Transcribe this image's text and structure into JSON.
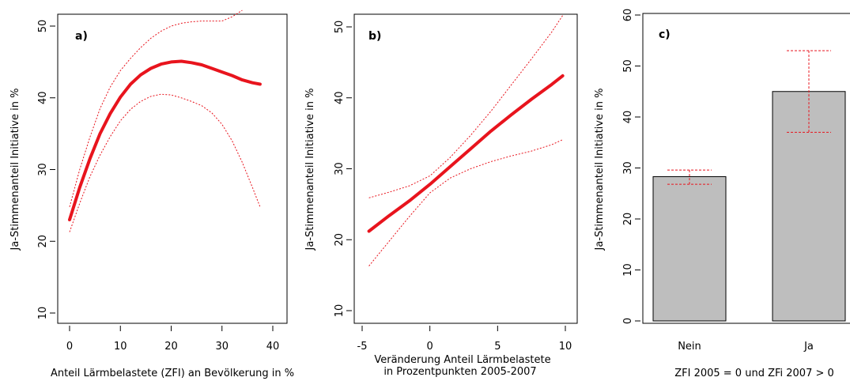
{
  "chart_data": [
    {
      "type": "line",
      "panel_label": "a)",
      "xlabel": "Anteil Lärmbelastete (ZFI) an Bevölkerung in %",
      "ylabel": "Ja-Stimmenanteil Initiative in %",
      "xlim": [
        0,
        40
      ],
      "ylim": [
        10,
        50
      ],
      "x_ticks": [
        0,
        10,
        20,
        30,
        40
      ],
      "y_ticks": [
        10,
        20,
        30,
        40,
        50
      ],
      "grid": false,
      "series": [
        {
          "role": "fit",
          "color": "#e8141d",
          "style": "solid",
          "x": [
            0,
            2,
            4,
            6,
            8,
            10,
            12,
            14,
            16,
            18,
            20,
            22,
            24,
            26,
            28,
            30,
            32,
            34,
            36,
            37.5
          ],
          "y": [
            23,
            27.5,
            31.5,
            35,
            37.8,
            40.1,
            41.9,
            43.2,
            44.1,
            44.7,
            45,
            45.1,
            44.9,
            44.6,
            44.1,
            43.6,
            43.1,
            42.5,
            42.1,
            41.9
          ]
        },
        {
          "role": "upper",
          "color": "#e8141d",
          "style": "dotted",
          "x": [
            0,
            2,
            4,
            6,
            8,
            10,
            12,
            14,
            16,
            18,
            20,
            22,
            24,
            26,
            28,
            30,
            32,
            34
          ],
          "y": [
            24.8,
            30,
            34.5,
            38.5,
            41.5,
            43.8,
            45.5,
            47,
            48.3,
            49.3,
            50,
            50.4,
            50.6,
            50.7,
            50.7,
            50.7,
            51.3,
            52.2
          ]
        },
        {
          "role": "lower",
          "color": "#e8141d",
          "style": "dotted",
          "x": [
            0,
            2,
            4,
            6,
            8,
            10,
            12,
            14,
            16,
            18,
            20,
            22,
            24,
            26,
            28,
            30,
            32,
            34,
            36,
            37.5
          ],
          "y": [
            21.3,
            25.3,
            29,
            32,
            34.6,
            36.8,
            38.4,
            39.5,
            40.2,
            40.5,
            40.4,
            40,
            39.5,
            38.9,
            37.9,
            36.3,
            34,
            31,
            27.5,
            24.8
          ]
        }
      ]
    },
    {
      "type": "line",
      "panel_label": "b)",
      "xlabel": "Veränderung Anteil Lärmbelastete",
      "xlabel_line2": "in Prozentpunkten 2005-2007",
      "ylabel": "Ja-Stimmenanteil Initiative in %",
      "xlim": [
        -5,
        10
      ],
      "ylim": [
        10,
        50
      ],
      "x_ticks": [
        -5,
        0,
        5,
        10
      ],
      "y_ticks": [
        10,
        20,
        30,
        40,
        50
      ],
      "grid": false,
      "series": [
        {
          "role": "fit",
          "color": "#e8141d",
          "style": "solid",
          "x": [
            -4.5,
            -3,
            -1.5,
            0,
            1.5,
            3,
            4.5,
            6,
            7.5,
            9,
            9.8
          ],
          "y": [
            21.2,
            23.4,
            25.5,
            27.8,
            30.3,
            32.8,
            35.3,
            37.6,
            39.8,
            41.9,
            43.1
          ]
        },
        {
          "role": "upper",
          "color": "#e8141d",
          "style": "dotted",
          "x": [
            -4.5,
            -3,
            -1.5,
            0,
            1.5,
            3,
            4.5,
            6,
            7.5,
            9,
            9.8
          ],
          "y": [
            25.9,
            26.7,
            27.6,
            29,
            31.6,
            34.7,
            38.1,
            41.8,
            45.5,
            49.3,
            51.6
          ]
        },
        {
          "role": "lower",
          "color": "#e8141d",
          "style": "dotted",
          "x": [
            -4.5,
            -3,
            -1.5,
            0,
            1.5,
            3,
            4.5,
            6,
            7.5,
            9,
            9.8
          ],
          "y": [
            16.3,
            19.8,
            23.3,
            26.6,
            28.7,
            30,
            31,
            31.8,
            32.5,
            33.4,
            34.1
          ]
        }
      ]
    },
    {
      "type": "bar",
      "panel_label": "c)",
      "xlabel": "ZFI 2005 = 0 und ZFi 2007 > 0",
      "ylabel": "Ja-Stimmenanteil Initiative in %",
      "categories": [
        "Nein",
        "Ja"
      ],
      "values": [
        28.3,
        45
      ],
      "error_low": [
        26.8,
        37
      ],
      "error_high": [
        29.6,
        53
      ],
      "ylim": [
        0,
        60
      ],
      "y_ticks": [
        0,
        10,
        20,
        30,
        40,
        50,
        60
      ],
      "bar_color": "#bebebe",
      "error_color": "#e8141d",
      "grid": false
    }
  ]
}
